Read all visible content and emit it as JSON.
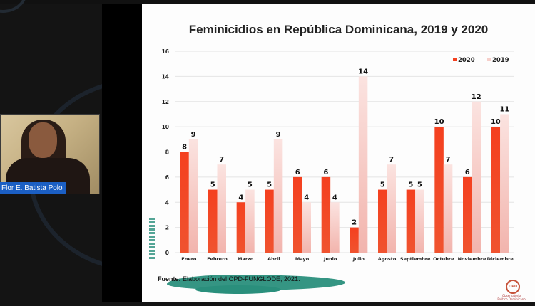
{
  "webcam": {
    "participant_name": "Flor E. Batista Polo"
  },
  "slide": {
    "source_label": "Fuente:",
    "source_text": " Elaboración del OPD-FUNGLODE, 2021.",
    "logo_text": "OPD",
    "logo_caption": "Observatorio Político Dominicano"
  },
  "chart_data": {
    "type": "bar",
    "title": "Feminicidios en República Dominicana, 2019 y 2020",
    "xlabel": "",
    "ylabel": "",
    "ylim": [
      0,
      16
    ],
    "yticks": [
      0,
      2,
      4,
      6,
      8,
      10,
      12,
      14,
      16
    ],
    "grid": true,
    "legend_position": "top-right",
    "categories": [
      "Enero",
      "Febrero",
      "Marzo",
      "Abril",
      "Mayo",
      "Junio",
      "Julio",
      "Agosto",
      "Septiembre",
      "Octubre",
      "Noviembre",
      "Diciembre"
    ],
    "series": [
      {
        "name": "2020",
        "color": "#f4401f",
        "values": [
          8,
          5,
          4,
          5,
          6,
          6,
          2,
          5,
          5,
          10,
          6,
          10
        ]
      },
      {
        "name": "2019",
        "color": "#f7c9c4",
        "values": [
          9,
          7,
          5,
          9,
          4,
          4,
          14,
          7,
          5,
          7,
          12,
          11
        ]
      }
    ]
  }
}
